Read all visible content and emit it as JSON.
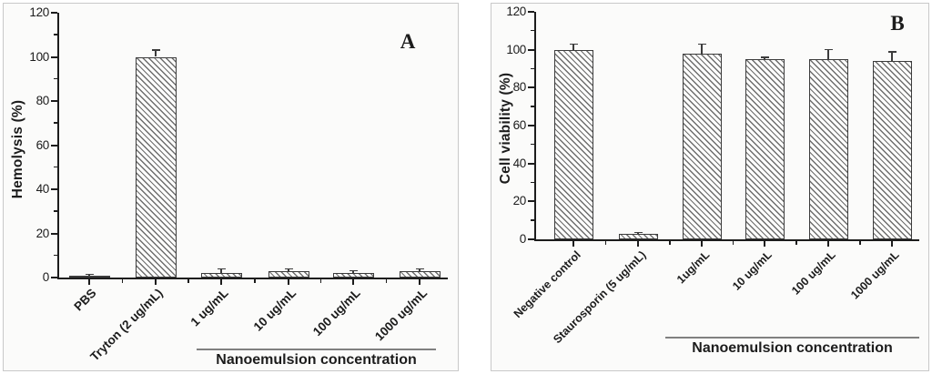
{
  "figure": {
    "background": "#ffffff",
    "panel_background": "#fbfbfa",
    "panel_border": "#c9c9c9",
    "axis_color": "#1c1c1c",
    "hatch_color": "#6e6e6e",
    "bar_fill": "white-diagonal-hatch"
  },
  "chart_data": [
    {
      "type": "bar",
      "panel_label": "A",
      "title": "",
      "xlabel": "",
      "ylabel": "Hemolysis (%)",
      "ylim": [
        0,
        120
      ],
      "ytick_major_step": 20,
      "ytick_minor_step": 10,
      "grid": false,
      "legend": "none",
      "bar_style": "diagonal-hatch",
      "categories": [
        "PBS",
        "Tryton (2 ug/mL)",
        "1 ug/mL",
        "10 ug/mL",
        "100 ug/mL",
        "1000 ug/mL"
      ],
      "values": [
        1,
        100,
        2,
        3,
        2,
        3
      ],
      "errors": [
        0.5,
        3,
        2,
        1,
        1,
        1
      ],
      "group_annotation": {
        "label": "Nanoemulsion concentration",
        "applies_to": [
          "1 ug/mL",
          "10 ug/mL",
          "100 ug/mL",
          "1000 ug/mL"
        ]
      }
    },
    {
      "type": "bar",
      "panel_label": "B",
      "title": "",
      "xlabel": "",
      "ylabel": "Cell viability (%)",
      "ylim": [
        0,
        120
      ],
      "ytick_major_step": 20,
      "ytick_minor_step": 10,
      "grid": false,
      "legend": "none",
      "bar_style": "diagonal-hatch",
      "categories": [
        "Negative control",
        "Staurosporin (5 ug/mL)",
        "1ug/mL",
        "10 ug/mL",
        "100 ug/mL",
        "1000 ug/mL"
      ],
      "values": [
        100,
        3,
        98,
        95,
        95,
        94
      ],
      "errors": [
        3,
        0.5,
        5,
        1,
        5,
        5
      ],
      "group_annotation": {
        "label": "Nanoemulsion concentration",
        "applies_to": [
          "1ug/mL",
          "10 ug/mL",
          "100 ug/mL",
          "1000 ug/mL"
        ]
      }
    }
  ]
}
